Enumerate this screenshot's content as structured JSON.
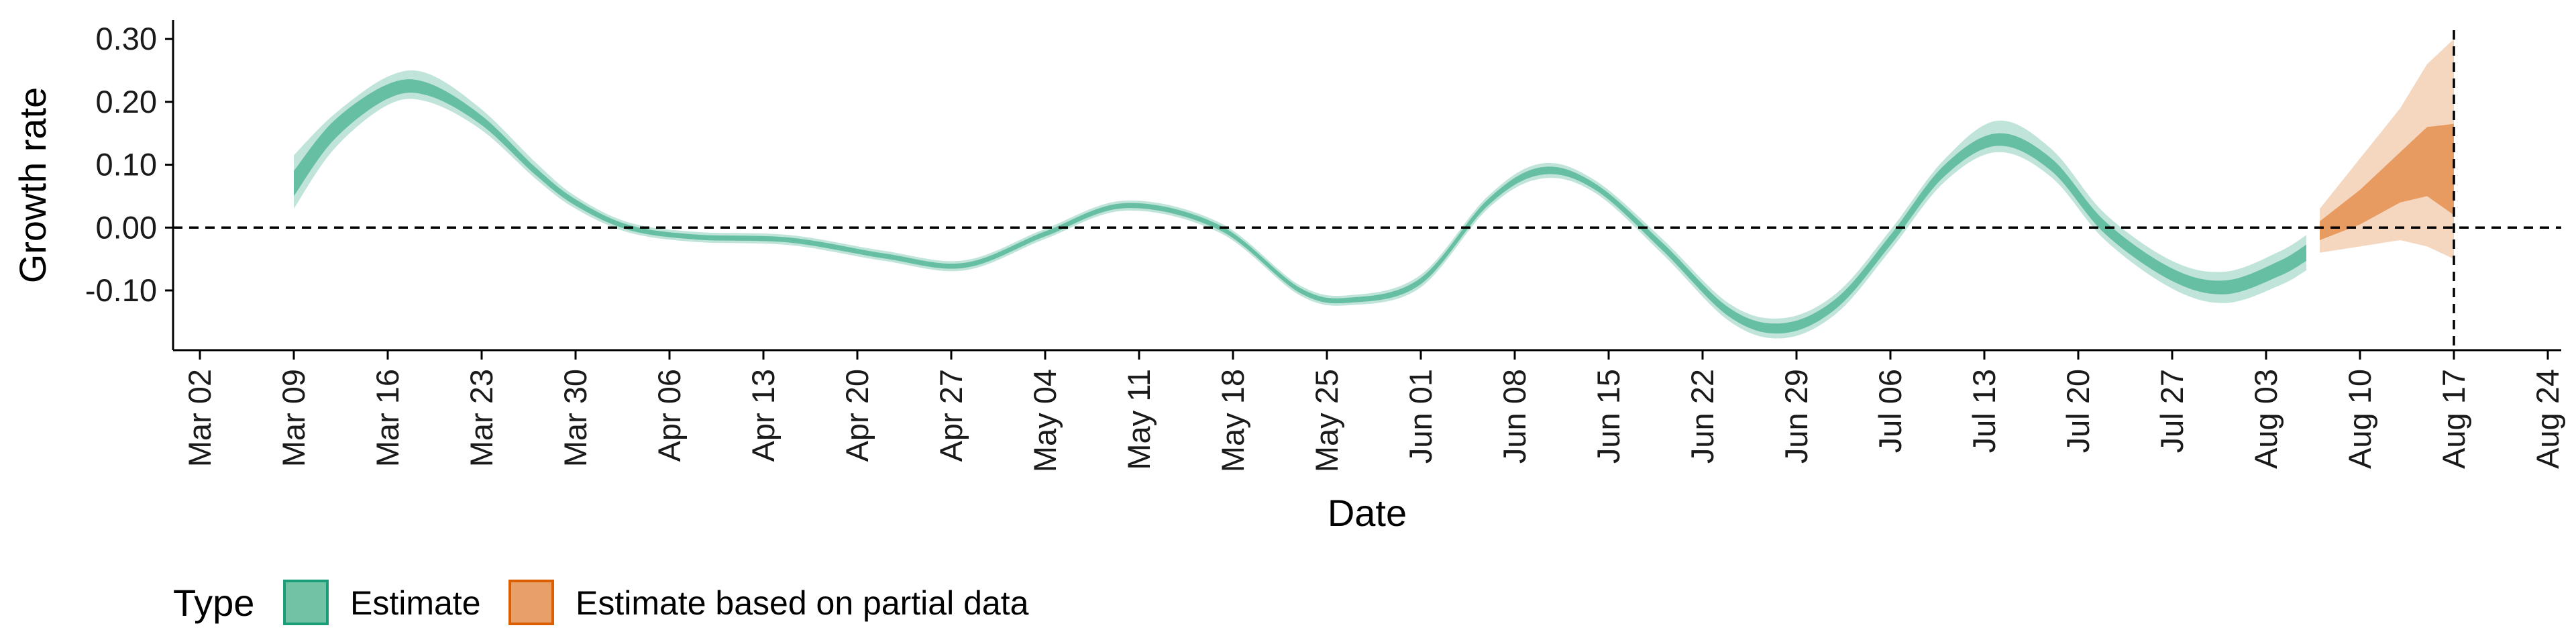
{
  "chart_data": {
    "type": "area",
    "xlabel": "Date",
    "ylabel": "Growth rate",
    "ylim": [
      -0.195,
      0.33
    ],
    "xlim": [
      "2020-02-29",
      "2020-08-25"
    ],
    "y_ticks": [
      0.3,
      0.2,
      0.1,
      0.0,
      -0.1
    ],
    "y_tick_labels": [
      "0.30",
      "0.20",
      "0.10",
      "0.00",
      "-0.10"
    ],
    "x_ticks": [
      "2020-03-02",
      "2020-03-09",
      "2020-03-16",
      "2020-03-23",
      "2020-03-30",
      "2020-04-06",
      "2020-04-13",
      "2020-04-20",
      "2020-04-27",
      "2020-05-04",
      "2020-05-11",
      "2020-05-18",
      "2020-05-25",
      "2020-06-01",
      "2020-06-08",
      "2020-06-15",
      "2020-06-22",
      "2020-06-29",
      "2020-07-06",
      "2020-07-13",
      "2020-07-20",
      "2020-07-27",
      "2020-08-03",
      "2020-08-10",
      "2020-08-17",
      "2020-08-24"
    ],
    "x_tick_labels": [
      "Mar 02",
      "Mar 09",
      "Mar 16",
      "Mar 23",
      "Mar 30",
      "Apr 06",
      "Apr 13",
      "Apr 20",
      "Apr 27",
      "May 04",
      "May 11",
      "May 18",
      "May 25",
      "Jun 01",
      "Jun 08",
      "Jun 15",
      "Jun 22",
      "Jun 29",
      "Jul 06",
      "Jul 13",
      "Jul 20",
      "Jul 27",
      "Aug 03",
      "Aug 10",
      "Aug 17",
      "Aug 24"
    ],
    "reference_lines": {
      "horizontal_y": 0.0,
      "vertical_x": "2020-08-17"
    },
    "series": [
      {
        "name": "Estimate",
        "color": "#1B9E77",
        "points": [
          {
            "x": "2020-03-09",
            "median": 0.07,
            "inner": [
              0.05,
              0.09
            ],
            "outer": [
              0.03,
              0.115
            ]
          },
          {
            "x": "2020-03-12",
            "median": 0.155,
            "inner": [
              0.14,
              0.17
            ],
            "outer": [
              0.125,
              0.18
            ]
          },
          {
            "x": "2020-03-16",
            "median": 0.215,
            "inner": [
              0.205,
              0.228
            ],
            "outer": [
              0.195,
              0.24
            ]
          },
          {
            "x": "2020-03-19",
            "median": 0.22,
            "inner": [
              0.21,
              0.23
            ],
            "outer": [
              0.2,
              0.245
            ]
          },
          {
            "x": "2020-03-23",
            "median": 0.17,
            "inner": [
              0.163,
              0.178
            ],
            "outer": [
              0.155,
              0.188
            ]
          },
          {
            "x": "2020-03-27",
            "median": 0.09,
            "inner": [
              0.084,
              0.096
            ],
            "outer": [
              0.078,
              0.104
            ]
          },
          {
            "x": "2020-03-30",
            "median": 0.04,
            "inner": [
              0.035,
              0.045
            ],
            "outer": [
              0.03,
              0.05
            ]
          },
          {
            "x": "2020-04-03",
            "median": 0.0,
            "inner": [
              -0.004,
              0.004
            ],
            "outer": [
              -0.008,
              0.008
            ]
          },
          {
            "x": "2020-04-08",
            "median": -0.015,
            "inner": [
              -0.019,
              -0.011
            ],
            "outer": [
              -0.023,
              -0.007
            ]
          },
          {
            "x": "2020-04-15",
            "median": -0.02,
            "inner": [
              -0.024,
              -0.016
            ],
            "outer": [
              -0.028,
              -0.012
            ]
          },
          {
            "x": "2020-04-22",
            "median": -0.045,
            "inner": [
              -0.049,
              -0.041
            ],
            "outer": [
              -0.053,
              -0.037
            ]
          },
          {
            "x": "2020-04-28",
            "median": -0.06,
            "inner": [
              -0.064,
              -0.056
            ],
            "outer": [
              -0.068,
              -0.052
            ]
          },
          {
            "x": "2020-05-04",
            "median": -0.01,
            "inner": [
              -0.014,
              -0.006
            ],
            "outer": [
              -0.018,
              -0.002
            ]
          },
          {
            "x": "2020-05-10",
            "median": 0.035,
            "inner": [
              0.031,
              0.039
            ],
            "outer": [
              0.027,
              0.043
            ]
          },
          {
            "x": "2020-05-17",
            "median": 0.0,
            "inner": [
              -0.004,
              0.004
            ],
            "outer": [
              -0.008,
              0.008
            ]
          },
          {
            "x": "2020-05-23",
            "median": -0.1,
            "inner": [
              -0.104,
              -0.096
            ],
            "outer": [
              -0.108,
              -0.092
            ]
          },
          {
            "x": "2020-05-27",
            "median": -0.115,
            "inner": [
              -0.119,
              -0.111
            ],
            "outer": [
              -0.123,
              -0.107
            ]
          },
          {
            "x": "2020-06-01",
            "median": -0.085,
            "inner": [
              -0.09,
              -0.08
            ],
            "outer": [
              -0.095,
              -0.075
            ]
          },
          {
            "x": "2020-06-06",
            "median": 0.04,
            "inner": [
              0.035,
              0.045
            ],
            "outer": [
              0.03,
              0.05
            ]
          },
          {
            "x": "2020-06-10",
            "median": 0.09,
            "inner": [
              0.084,
              0.096
            ],
            "outer": [
              0.078,
              0.102
            ]
          },
          {
            "x": "2020-06-14",
            "median": 0.065,
            "inner": [
              0.06,
              0.07
            ],
            "outer": [
              0.055,
              0.075
            ]
          },
          {
            "x": "2020-06-19",
            "median": -0.03,
            "inner": [
              -0.036,
              -0.024
            ],
            "outer": [
              -0.042,
              -0.018
            ]
          },
          {
            "x": "2020-06-24",
            "median": -0.135,
            "inner": [
              -0.142,
              -0.128
            ],
            "outer": [
              -0.149,
              -0.121
            ]
          },
          {
            "x": "2020-06-28",
            "median": -0.16,
            "inner": [
              -0.168,
              -0.152
            ],
            "outer": [
              -0.176,
              -0.144
            ]
          },
          {
            "x": "2020-07-02",
            "median": -0.12,
            "inner": [
              -0.128,
              -0.112
            ],
            "outer": [
              -0.136,
              -0.104
            ]
          },
          {
            "x": "2020-07-06",
            "median": -0.02,
            "inner": [
              -0.028,
              -0.012
            ],
            "outer": [
              -0.036,
              -0.004
            ]
          },
          {
            "x": "2020-07-10",
            "median": 0.09,
            "inner": [
              0.081,
              0.099
            ],
            "outer": [
              0.072,
              0.108
            ]
          },
          {
            "x": "2020-07-14",
            "median": 0.14,
            "inner": [
              0.13,
              0.15
            ],
            "outer": [
              0.12,
              0.17
            ]
          },
          {
            "x": "2020-07-18",
            "median": 0.1,
            "inner": [
              0.09,
              0.11
            ],
            "outer": [
              0.08,
              0.125
            ]
          },
          {
            "x": "2020-07-22",
            "median": 0.0,
            "inner": [
              -0.01,
              0.01
            ],
            "outer": [
              -0.02,
              0.022
            ]
          },
          {
            "x": "2020-07-27",
            "median": -0.075,
            "inner": [
              -0.085,
              -0.065
            ],
            "outer": [
              -0.097,
              -0.053
            ]
          },
          {
            "x": "2020-07-31",
            "median": -0.095,
            "inner": [
              -0.106,
              -0.084
            ],
            "outer": [
              -0.12,
              -0.07
            ]
          },
          {
            "x": "2020-08-04",
            "median": -0.065,
            "inner": [
              -0.077,
              -0.053
            ],
            "outer": [
              -0.092,
              -0.038
            ]
          },
          {
            "x": "2020-08-06",
            "median": -0.04,
            "inner": [
              -0.053,
              -0.027
            ],
            "outer": [
              -0.068,
              -0.012
            ]
          }
        ]
      },
      {
        "name": "Estimate based on partial data",
        "color": "#D95F02",
        "points": [
          {
            "x": "2020-08-07",
            "median": -0.005,
            "inner": [
              -0.02,
              0.01
            ],
            "outer": [
              -0.04,
              0.03
            ]
          },
          {
            "x": "2020-08-10",
            "median": 0.03,
            "inner": [
              0.005,
              0.06
            ],
            "outer": [
              -0.03,
              0.11
            ]
          },
          {
            "x": "2020-08-13",
            "median": 0.06,
            "inner": [
              0.04,
              0.12
            ],
            "outer": [
              -0.02,
              0.19
            ]
          },
          {
            "x": "2020-08-15",
            "median": 0.08,
            "inner": [
              0.05,
              0.16
            ],
            "outer": [
              -0.03,
              0.26
            ]
          },
          {
            "x": "2020-08-17",
            "median": 0.09,
            "inner": [
              0.02,
              0.165
            ],
            "outer": [
              -0.05,
              0.3
            ]
          }
        ]
      }
    ],
    "legend": {
      "title": "Type",
      "position": "bottom-left",
      "entries": [
        "Estimate",
        "Estimate based on partial data"
      ]
    }
  }
}
